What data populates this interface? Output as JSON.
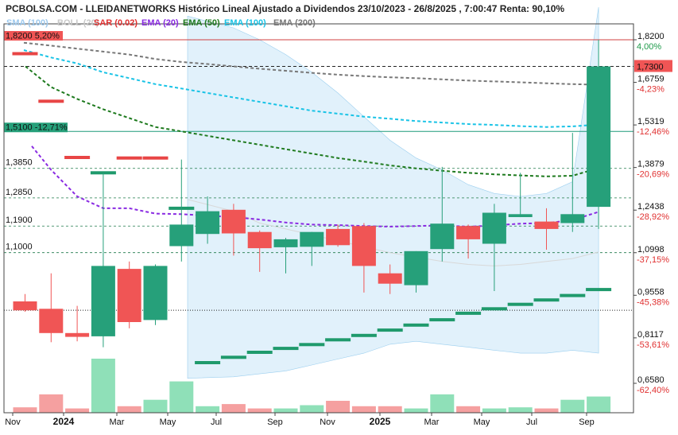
{
  "title": "PCBOLSA.COM - LLEIDANETWORKS Histórico Lineal Ajustado a Dividendos 23/10/2023 - 26/8/2025 , 7:00:47 Renta: 90,10%",
  "legend": [
    {
      "label": "SMA (100)",
      "color": "#9dc9ee"
    },
    {
      "label": "BOLL (20)",
      "color": "#c8c8c8"
    },
    {
      "label": "SAR (0.02)",
      "color": "#e03030"
    },
    {
      "label": "EMA (20)",
      "color": "#8a2be2"
    },
    {
      "label": "EMA (50)",
      "color": "#1e7a1e"
    },
    {
      "label": "EMA (100)",
      "color": "#19c3e6"
    },
    {
      "label": "EMA (200)",
      "color": "#777777"
    }
  ],
  "colors": {
    "up": "#26a07a",
    "down": "#f05555",
    "vol_up": "#8fe0b8",
    "vol_down": "#f5a0a0",
    "boll": "#d7ecfa",
    "sar_up": "#1f9a6c",
    "sar_down": "#e84545"
  },
  "levels": {
    "resistance": {
      "label": "1,8200  5,20%"
    },
    "support": {
      "label": "1,5100  -12,71%"
    },
    "lines": [
      {
        "label": "1,3850",
        "value": 1.385
      },
      {
        "label": "1,2850",
        "value": 1.285
      },
      {
        "label": "1,1900",
        "value": 1.19
      },
      {
        "label": "1,1000",
        "value": 1.1
      }
    ]
  },
  "chart_data": {
    "type": "candlestick",
    "x_tick_labels": [
      "Nov",
      "2024",
      "Mar",
      "May",
      "Jul",
      "Sep",
      "Nov",
      "2025",
      "Mar",
      "May",
      "Jul",
      "Sep"
    ],
    "y_axis": {
      "ticks": [
        {
          "value": 1.82,
          "label": "1,8200",
          "pct": "4,00%",
          "pct_color": "#1e9a4a"
        },
        {
          "value": 1.73,
          "label": "1,7300",
          "pct": "",
          "pct_color": ""
        },
        {
          "value": 1.6759,
          "label": "1,6759",
          "pct": "-4,23%",
          "pct_color": "#e03030"
        },
        {
          "value": 1.5319,
          "label": "1,5319",
          "pct": "-12,46%",
          "pct_color": "#e03030"
        },
        {
          "value": 1.3879,
          "label": "1,3879",
          "pct": "-20,69%",
          "pct_color": "#e03030"
        },
        {
          "value": 1.2438,
          "label": "1,2438",
          "pct": "-28,92%",
          "pct_color": "#e03030"
        },
        {
          "value": 1.0998,
          "label": "1,0998",
          "pct": "-37,15%",
          "pct_color": "#e03030"
        },
        {
          "value": 0.9558,
          "label": "0,9558",
          "pct": "-45,38%",
          "pct_color": "#e03030"
        },
        {
          "value": 0.8117,
          "label": "0,8117",
          "pct": "-53,61%",
          "pct_color": "#e03030"
        },
        {
          "value": 0.658,
          "label": "0,6580",
          "pct": "-62,40%",
          "pct_color": "#e03030"
        }
      ],
      "last_price": {
        "value": 1.73,
        "label": "1,7300"
      }
    },
    "candles": [
      {
        "open": 0.935,
        "high": 0.96,
        "low": 0.9,
        "close": 0.905
      },
      {
        "open": 0.91,
        "high": 1.03,
        "low": 0.797,
        "close": 0.828
      },
      {
        "open": 0.828,
        "high": 0.92,
        "low": 0.8,
        "close": 0.815
      },
      {
        "open": 0.817,
        "high": 1.37,
        "low": 0.78,
        "close": 1.055
      },
      {
        "open": 1.045,
        "high": 1.07,
        "low": 0.844,
        "close": 0.865
      },
      {
        "open": 0.872,
        "high": 1.06,
        "low": 0.855,
        "close": 1.055
      },
      {
        "open": 1.122,
        "high": 1.415,
        "low": 1.07,
        "close": 1.195
      },
      {
        "open": 1.163,
        "high": 1.29,
        "low": 1.13,
        "close": 1.24
      },
      {
        "open": 1.245,
        "high": 1.265,
        "low": 1.09,
        "close": 1.165
      },
      {
        "open": 1.17,
        "high": 1.175,
        "low": 1.035,
        "close": 1.115
      },
      {
        "open": 1.118,
        "high": 1.15,
        "low": 1.03,
        "close": 1.145
      },
      {
        "open": 1.12,
        "high": 1.17,
        "low": 1.055,
        "close": 1.17
      },
      {
        "open": 1.18,
        "high": 1.195,
        "low": 1.12,
        "close": 1.125
      },
      {
        "open": 1.19,
        "high": 1.2,
        "low": 0.965,
        "close": 1.055
      },
      {
        "open": 1.03,
        "high": 1.06,
        "low": 0.96,
        "close": 0.995
      },
      {
        "open": 0.99,
        "high": 1.105,
        "low": 0.965,
        "close": 1.105
      },
      {
        "open": 1.112,
        "high": 1.39,
        "low": 1.07,
        "close": 1.198
      },
      {
        "open": 1.19,
        "high": 1.195,
        "low": 1.08,
        "close": 1.145
      },
      {
        "open": 1.13,
        "high": 1.265,
        "low": 0.97,
        "close": 1.235
      },
      {
        "open": 1.22,
        "high": 1.37,
        "low": 1.22,
        "close": 1.23
      },
      {
        "open": 1.205,
        "high": 1.25,
        "low": 1.11,
        "close": 1.18
      },
      {
        "open": 1.2,
        "high": 1.505,
        "low": 1.17,
        "close": 1.23
      },
      {
        "open": 1.255,
        "high": 1.82,
        "low": 1.18,
        "close": 1.73
      }
    ],
    "volume": [
      0.1,
      0.34,
      0.08,
      1.0,
      0.12,
      0.24,
      0.58,
      0.12,
      0.16,
      0.08,
      0.08,
      0.14,
      0.22,
      0.12,
      0.12,
      0.08,
      0.34,
      0.12,
      0.08,
      0.1,
      0.08,
      0.24,
      0.3
    ],
    "sar": [
      1.773,
      1.612,
      1.422,
      1.37,
      1.42,
      1.42,
      1.25,
      0.728,
      0.746,
      0.763,
      0.776,
      0.789,
      0.805,
      0.82,
      0.838,
      0.855,
      0.873,
      0.895,
      0.91,
      0.925,
      0.94,
      0.955,
      0.975
    ],
    "ema20": [
      1.46,
      1.38,
      1.29,
      1.25,
      1.25,
      1.232,
      1.23,
      1.225,
      1.22,
      1.212,
      1.202,
      1.195,
      1.193,
      1.19,
      1.188,
      1.19,
      1.192,
      1.188,
      1.192,
      1.198,
      1.2,
      1.21,
      1.238
    ],
    "ema50": [
      1.73,
      1.66,
      1.62,
      1.585,
      1.555,
      1.525,
      1.51,
      1.495,
      1.48,
      1.465,
      1.45,
      1.435,
      1.42,
      1.408,
      1.395,
      1.385,
      1.377,
      1.37,
      1.365,
      1.361,
      1.358,
      1.36,
      1.386
    ],
    "ema100": [
      1.785,
      1.76,
      1.74,
      1.71,
      1.69,
      1.67,
      1.655,
      1.64,
      1.625,
      1.61,
      1.595,
      1.58,
      1.57,
      1.56,
      1.553,
      1.545,
      1.54,
      1.535,
      1.532,
      1.528,
      1.525,
      1.527,
      1.533
    ],
    "ema200": [
      1.81,
      1.8,
      1.79,
      1.78,
      1.77,
      1.755,
      1.745,
      1.738,
      1.73,
      1.722,
      1.715,
      1.708,
      1.702,
      1.697,
      1.693,
      1.69,
      1.686,
      1.682,
      1.679,
      1.676,
      1.673,
      1.67,
      1.668
    ],
    "boll_upper": [
      null,
      null,
      null,
      null,
      null,
      null,
      null,
      1.9,
      1.86,
      1.82,
      1.77,
      1.71,
      1.64,
      1.56,
      1.48,
      1.42,
      1.38,
      1.33,
      1.3,
      1.29,
      1.3,
      1.34,
      1.93
    ],
    "boll_lower": [
      null,
      null,
      null,
      null,
      null,
      null,
      null,
      0.675,
      0.68,
      0.69,
      0.7,
      0.72,
      0.74,
      0.76,
      0.79,
      0.8,
      0.79,
      0.78,
      0.77,
      0.76,
      0.76,
      0.77,
      0.76
    ],
    "sma100": [
      null,
      null,
      null,
      null,
      null,
      null,
      null,
      1.28,
      1.24,
      1.2,
      1.18,
      1.16,
      1.14,
      1.12,
      1.1,
      1.085,
      1.07,
      1.06,
      1.055,
      1.06,
      1.07,
      1.08,
      1.102
    ]
  }
}
